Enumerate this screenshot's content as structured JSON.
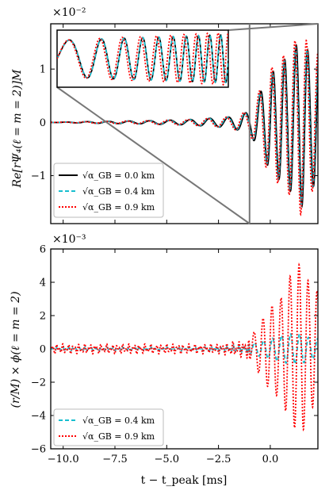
{
  "figure": {
    "top": {
      "exponent": "×10⁻²",
      "ylabel": "Re[rΨ₄(ℓ = m = 2)]M",
      "legend": [
        {
          "label": "√α_GB = 0.0 km",
          "color": "#000000",
          "style": "solid"
        },
        {
          "label": "√α_GB = 0.4 km",
          "color": "#17becf",
          "style": "dashed"
        },
        {
          "label": "√α_GB = 0.9 km",
          "color": "#ff0000",
          "style": "dotted"
        }
      ]
    },
    "bottom": {
      "exponent": "×10⁻³",
      "ylabel": "(r/M) × ϕ(ℓ = m = 2)",
      "xlabel": "t − t_peak [ms]",
      "legend": [
        {
          "label": "√α_GB = 0.4 km",
          "color": "#17becf",
          "style": "dashed"
        },
        {
          "label": "√α_GB = 0.9 km",
          "color": "#ff0000",
          "style": "dotted"
        }
      ]
    }
  },
  "chart_data": [
    {
      "type": "line",
      "x_range": [
        -10.6,
        2.3
      ],
      "ylim": [
        -1.9,
        1.85
      ],
      "y_scale_exponent": -2,
      "yticks": [
        -1,
        0,
        1
      ],
      "ytick_labels": [
        "−1",
        "0",
        "1"
      ],
      "xticks": [
        -10,
        -7.5,
        -5,
        -2.5,
        0
      ],
      "ylabel": "Re[rΨ₄(ℓ = m = 2)]M",
      "inset": {
        "x_range": [
          -10.6,
          -1.0
        ],
        "zoom_of": "early inspiral"
      },
      "series": [
        {
          "name": "√α_GB = 0.0 km",
          "x": [
            -10.6,
            -8,
            -6,
            -4,
            -2,
            -1,
            0,
            0.5,
            1.0,
            1.5,
            2.0
          ],
          "y": [
            0,
            0.02,
            0.03,
            0.05,
            0.1,
            0.2,
            0.9,
            1.1,
            1.3,
            1.6,
            1.2
          ]
        },
        {
          "name": "√α_GB = 0.4 km",
          "x": [
            -10.6,
            -8,
            -6,
            -4,
            -2,
            -1,
            0,
            0.5,
            1.0,
            1.5,
            2.0
          ],
          "y": [
            0,
            0.02,
            0.03,
            0.05,
            0.1,
            0.2,
            0.9,
            1.1,
            1.3,
            1.55,
            1.2
          ]
        },
        {
          "name": "√α_GB = 0.9 km",
          "x": [
            -10.6,
            -8,
            -6,
            -4,
            -2,
            -1,
            0,
            0.5,
            1.0,
            1.5,
            2.0
          ],
          "y": [
            0,
            0.02,
            0.03,
            0.05,
            0.1,
            0.22,
            1.0,
            1.2,
            1.4,
            1.75,
            1.3
          ]
        }
      ]
    },
    {
      "type": "line",
      "x_range": [
        -10.6,
        2.3
      ],
      "ylim": [
        -6,
        6
      ],
      "y_scale_exponent": -3,
      "yticks": [
        -6,
        -4,
        -2,
        0,
        2,
        4,
        6
      ],
      "ytick_labels": [
        "−6",
        "−4",
        "−2",
        "0",
        "2",
        "4",
        "6"
      ],
      "xticks": [
        -10,
        -7.5,
        -5,
        -2.5,
        0
      ],
      "xtick_labels": [
        "−10.0",
        "−7.5",
        "−5.0",
        "−2.5",
        "0.0"
      ],
      "xlabel": "t − t_peak [ms]",
      "ylabel": "(r/M) × ϕ(ℓ = m = 2)",
      "series": [
        {
          "name": "√α_GB = 0.4 km",
          "x": [
            -10,
            -7.5,
            -5,
            -2.5,
            -1,
            0,
            0.5,
            1.0,
            1.5,
            2.0
          ],
          "y": [
            0.1,
            0.1,
            0.1,
            0.15,
            0.3,
            0.6,
            0.8,
            0.9,
            0.9,
            0.6
          ]
        },
        {
          "name": "√α_GB = 0.9 km",
          "x": [
            -10,
            -7.5,
            -5,
            -2.5,
            -1,
            0,
            0.5,
            1.0,
            1.5,
            2.0
          ],
          "y": [
            0.3,
            0.3,
            0.3,
            0.3,
            0.6,
            2.5,
            3.0,
            4.5,
            5.2,
            3.5
          ]
        }
      ]
    }
  ]
}
